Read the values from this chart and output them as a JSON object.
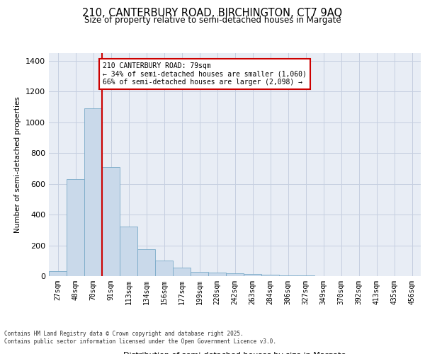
{
  "title_line1": "210, CANTERBURY ROAD, BIRCHINGTON, CT7 9AQ",
  "title_line2": "Size of property relative to semi-detached houses in Margate",
  "xlabel": "Distribution of semi-detached houses by size in Margate",
  "ylabel": "Number of semi-detached properties",
  "bar_labels": [
    "27sqm",
    "48sqm",
    "70sqm",
    "91sqm",
    "113sqm",
    "134sqm",
    "156sqm",
    "177sqm",
    "199sqm",
    "220sqm",
    "242sqm",
    "263sqm",
    "284sqm",
    "306sqm",
    "327sqm",
    "349sqm",
    "370sqm",
    "392sqm",
    "413sqm",
    "435sqm",
    "456sqm"
  ],
  "bar_values": [
    30,
    630,
    1090,
    710,
    320,
    175,
    100,
    55,
    28,
    25,
    18,
    12,
    8,
    5,
    3,
    2,
    1,
    1,
    0,
    0,
    0
  ],
  "bar_color": "#c9d9ea",
  "bar_edge_color": "#7aaac8",
  "red_line_x": 2.5,
  "annotation_title": "210 CANTERBURY ROAD: 79sqm",
  "annotation_line2": "← 34% of semi-detached houses are smaller (1,060)",
  "annotation_line3": "66% of semi-detached houses are larger (2,098) →",
  "annotation_box_facecolor": "#ffffff",
  "annotation_box_edgecolor": "#cc0000",
  "red_line_color": "#cc0000",
  "ylim": [
    0,
    1450
  ],
  "yticks": [
    0,
    200,
    400,
    600,
    800,
    1000,
    1200,
    1400
  ],
  "grid_color": "#c5cfe0",
  "background_color": "#e8edf5",
  "footer_line1": "Contains HM Land Registry data © Crown copyright and database right 2025.",
  "footer_line2": "Contains public sector information licensed under the Open Government Licence v3.0."
}
